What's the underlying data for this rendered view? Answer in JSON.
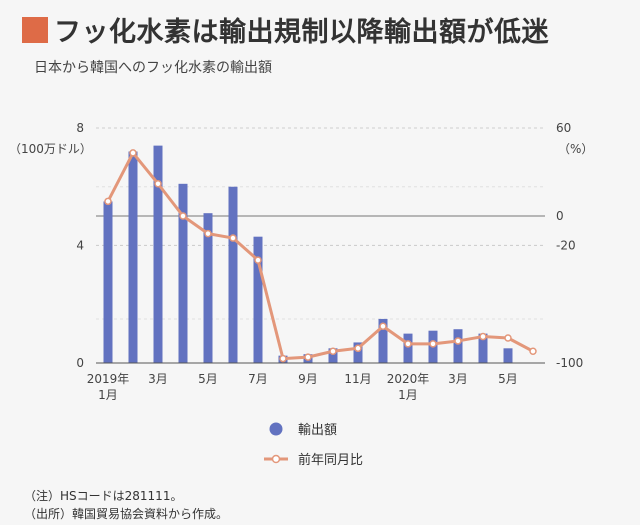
{
  "title": "フッ化水素は輸出規制以降輸出額が低迷",
  "subtitle": "日本から韓国へのフッ化水素の輸出額",
  "notes": [
    "（注）HSコードは281111。",
    "（出所）韓国貿易協会資料から作成。"
  ],
  "colors": {
    "bar": "#6272c0",
    "line": "#e3977a",
    "accent": "#de6b47"
  },
  "chart_data": {
    "type": "bar",
    "title": "フッ化水素は輸出規制以降輸出額が低迷",
    "subtitle": "日本から韓国へのフッ化水素の輸出額",
    "x": [
      "2019-01",
      "2019-02",
      "2019-03",
      "2019-04",
      "2019-05",
      "2019-06",
      "2019-07",
      "2019-08",
      "2019-09",
      "2019-10",
      "2019-11",
      "2019-12",
      "2020-01",
      "2020-02",
      "2020-03",
      "2020-04",
      "2020-05",
      "2020-06"
    ],
    "x_tick_labels": [
      {
        "index": 0,
        "lines": [
          "2019年",
          "1月"
        ]
      },
      {
        "index": 2,
        "lines": [
          "3月"
        ]
      },
      {
        "index": 4,
        "lines": [
          "5月"
        ]
      },
      {
        "index": 6,
        "lines": [
          "7月"
        ]
      },
      {
        "index": 8,
        "lines": [
          "9月"
        ]
      },
      {
        "index": 10,
        "lines": [
          "11月"
        ]
      },
      {
        "index": 12,
        "lines": [
          "2020年",
          "1月"
        ]
      },
      {
        "index": 14,
        "lines": [
          "3月"
        ]
      },
      {
        "index": 16,
        "lines": [
          "5月"
        ]
      }
    ],
    "left_axis": {
      "unit": "（100万ドル）",
      "ticks": [
        "0",
        "4",
        "8"
      ],
      "range": [
        0,
        8
      ]
    },
    "right_axis": {
      "unit": "（%）",
      "ticks": [
        "-100",
        "-20",
        "0",
        "60"
      ],
      "range": [
        -100,
        60
      ]
    },
    "series": [
      {
        "name": "輸出額",
        "kind": "bar",
        "axis": "left",
        "values": [
          5.5,
          7.2,
          7.4,
          6.1,
          5.1,
          6.0,
          4.3,
          0.25,
          0.3,
          0.5,
          0.7,
          1.5,
          1.0,
          1.1,
          1.15,
          1.0,
          0.5,
          null
        ]
      },
      {
        "name": "前年同月比",
        "kind": "line",
        "axis": "right",
        "values": [
          10,
          43,
          22,
          0,
          -12,
          -15,
          -30,
          -97,
          -96,
          -92,
          -90,
          -75,
          -87,
          -87,
          -85,
          -82,
          -83,
          -92
        ]
      }
    ],
    "legend": "bottom-center",
    "grid": true
  }
}
